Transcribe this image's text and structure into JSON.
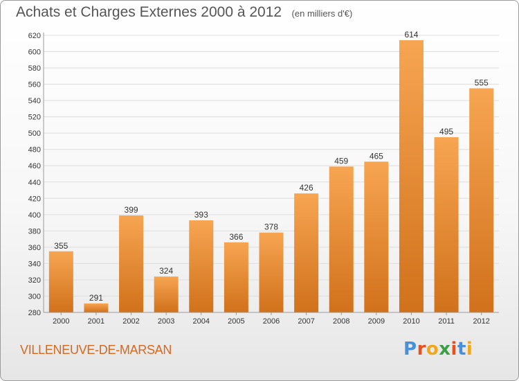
{
  "header": {
    "title": "Achats et Charges Externes 2000 à 2012",
    "subtitle": "(en milliers d'€)"
  },
  "footer": {
    "place": "VILLENEUVE-DE-MARSAN",
    "logo_text": "Proxiti"
  },
  "colors": {
    "bar_light": "#f7a552",
    "bar_dark": "#d1711b",
    "grid": "#dddddd",
    "axis_text": "#333333",
    "place_text": "#d2691e"
  },
  "chart_data": {
    "type": "bar",
    "categories": [
      "2000",
      "2001",
      "2002",
      "2003",
      "2004",
      "2005",
      "2006",
      "2007",
      "2008",
      "2009",
      "2010",
      "2011",
      "2012"
    ],
    "values": [
      355,
      291,
      399,
      324,
      393,
      366,
      378,
      426,
      459,
      465,
      614,
      495,
      555
    ],
    "data_labels": [
      "355",
      "291",
      "399",
      "324",
      "393",
      "366",
      "378",
      "426",
      "459",
      "465",
      "614",
      "495",
      "555"
    ],
    "yticks": [
      280,
      300,
      320,
      340,
      360,
      380,
      400,
      420,
      440,
      460,
      480,
      500,
      520,
      540,
      560,
      580,
      600,
      620
    ],
    "ylim": [
      280,
      620
    ],
    "grid": true,
    "legend": "none"
  }
}
